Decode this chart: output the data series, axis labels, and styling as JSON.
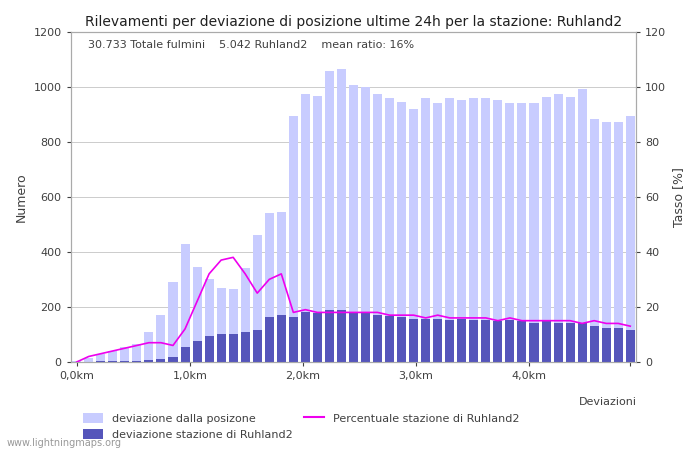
{
  "title": "Rilevamenti per deviazione di posizione ultime 24h per la stazione: Ruhland2",
  "annotation": "30.733 Totale fulmini    5.042 Ruhland2    mean ratio: 16%",
  "xlabel": "Deviazioni",
  "ylabel_left": "Numero",
  "ylabel_right": "Tasso [%]",
  "xlim": [
    -0.5,
    46.5
  ],
  "ylim_left": [
    0,
    1200
  ],
  "ylim_right": [
    0,
    120
  ],
  "xtick_positions": [
    0,
    9.4,
    18.8,
    28.2,
    37.6,
    46
  ],
  "xtick_labels": [
    "0,0km",
    "1,0km",
    "2,0km",
    "3,0km",
    "4,0km",
    ""
  ],
  "ytick_left": [
    0,
    200,
    400,
    600,
    800,
    1000,
    1200
  ],
  "ytick_right": [
    0,
    20,
    40,
    60,
    80,
    100,
    120
  ],
  "bar_width": 0.75,
  "light_blue_color": "#c8ccff",
  "dark_blue_color": "#5555bb",
  "line_color": "#ee00ee",
  "background_color": "#ffffff",
  "grid_color": "#cccccc",
  "legend_labels": [
    "deviazione dalla posizone",
    "deviazione stazione di Ruhland2",
    "Percentuale stazione di Ruhland2"
  ],
  "watermark": "www.lightningmaps.org",
  "total_bars": [
    5,
    15,
    30,
    40,
    55,
    65,
    110,
    170,
    290,
    430,
    345,
    300,
    270,
    265,
    340,
    460,
    540,
    545,
    895,
    975,
    965,
    1055,
    1065,
    1005,
    1000,
    975,
    960,
    945,
    920,
    960,
    940,
    960,
    950,
    960,
    960,
    950,
    940,
    940,
    942,
    962,
    972,
    962,
    992,
    882,
    872,
    872,
    895
  ],
  "station_bars": [
    0,
    1,
    2,
    3,
    4,
    5,
    8,
    12,
    18,
    55,
    75,
    95,
    100,
    102,
    110,
    115,
    162,
    172,
    165,
    182,
    177,
    187,
    187,
    182,
    177,
    172,
    167,
    162,
    157,
    157,
    157,
    152,
    157,
    152,
    152,
    147,
    152,
    147,
    142,
    147,
    142,
    142,
    142,
    132,
    122,
    122,
    115
  ],
  "ratio_line": [
    0,
    2,
    3,
    4,
    5,
    6,
    7,
    7,
    6,
    12,
    22,
    32,
    37,
    38,
    32,
    25,
    30,
    32,
    18,
    19,
    18,
    18,
    18,
    18,
    18,
    18,
    17,
    17,
    17,
    16,
    17,
    16,
    16,
    16,
    16,
    15,
    16,
    15,
    15,
    15,
    15,
    15,
    14,
    15,
    14,
    14,
    13
  ]
}
